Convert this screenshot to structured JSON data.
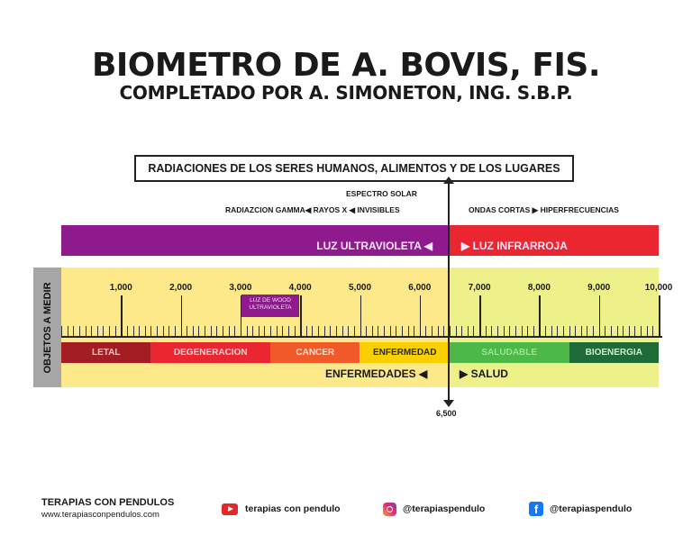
{
  "header": {
    "title": "BIOMETRO DE A. BOVIS, FIS.",
    "subtitle": "COMPLETADO POR A. SIMONETON, ING. S.B.P."
  },
  "boxed_title": "RADIACIONES DE LOS SERES HUMANOS, ALIMENTOS Y DE LOS LUGARES",
  "labels": {
    "espectro": "ESPECTRO SOLAR",
    "left_line": "RADIAZCION GAMMA◀ RAYOS X ◀ INVISIBLES",
    "right_line": "ONDAS CORTAS ▶ HIPERFRECUENCIAS",
    "uv": "LUZ ULTRAVIOLETA ◀",
    "ir": "▶ LUZ INFRARROJA",
    "side": "OBJETOS A MEDIR",
    "wood": "LUZ DE WOOD ULTRAVIOLETA",
    "enfermedades": "ENFERMEDADES ◀",
    "salud": "▶ SALUD",
    "marker": "6,500"
  },
  "scale": {
    "min": 0,
    "max": 10000,
    "ticks": [
      "1,000",
      "2,000",
      "3,000",
      "4,000",
      "5,000",
      "6,000",
      "7,000",
      "8,000",
      "9,000",
      "10,000"
    ],
    "tick_values": [
      1000,
      2000,
      3000,
      4000,
      5000,
      6000,
      7000,
      8000,
      9000,
      10000
    ],
    "marker_value": 6500
  },
  "segments": [
    {
      "label": "LETAL",
      "from": 0,
      "to": 1500,
      "color": "#a31e22",
      "text": "#f4c6c6"
    },
    {
      "label": "DEGENERACION",
      "from": 1500,
      "to": 3500,
      "color": "#ea2630",
      "text": "#fbd2d2"
    },
    {
      "label": "CANCER",
      "from": 3500,
      "to": 5000,
      "color": "#f05a28",
      "text": "#fde0d2"
    },
    {
      "label": "ENFERMEDAD",
      "from": 5000,
      "to": 6500,
      "color": "#fbd000",
      "text": "#2a2a2a"
    },
    {
      "label": "SALUDABLE",
      "from": 6500,
      "to": 8500,
      "color": "#4cb847",
      "text": "#9fe09a"
    },
    {
      "label": "BIOENERGIA",
      "from": 8500,
      "to": 10000,
      "color": "#1f6b38",
      "text": "#cdeccd"
    }
  ],
  "footer": {
    "brand": "TERAPIAS CON PENDULOS",
    "url": "www.terapiasconpendulos.com",
    "youtube": "terapias con pendulo",
    "instagram": "@terapiaspendulo",
    "facebook": "@terapiaspendulo",
    "colors": {
      "youtube": "#e02a2a",
      "facebook": "#1877f2"
    }
  }
}
